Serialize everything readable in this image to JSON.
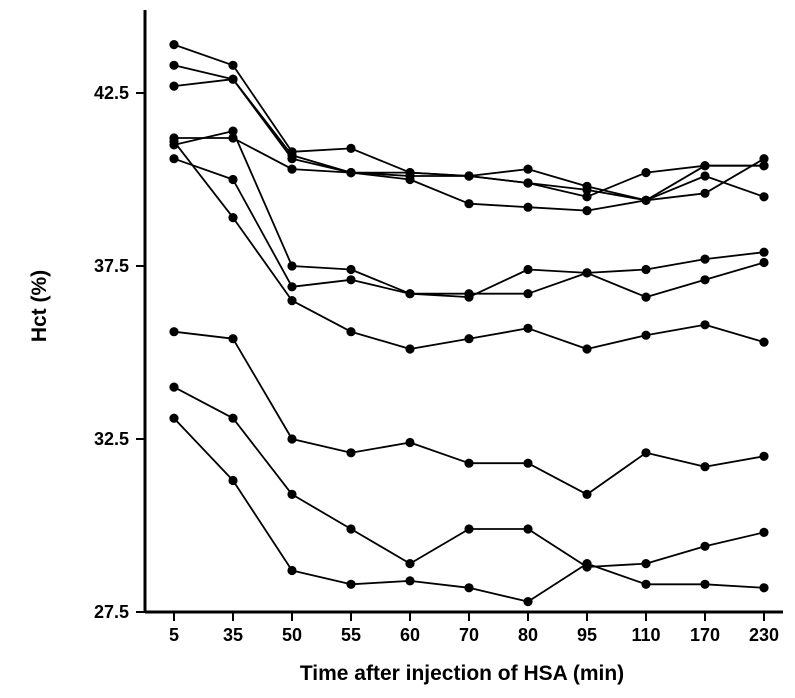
{
  "chart_data": {
    "type": "line",
    "title": "",
    "xlabel": "Time after injection of HSA (min)",
    "ylabel": "Hct  (%)",
    "categories": [
      "5",
      "35",
      "50",
      "55",
      "60",
      "70",
      "80",
      "95",
      "110",
      "170",
      "230"
    ],
    "yticks": [
      "27.5",
      "32.5",
      "37.5",
      "42.5"
    ],
    "ylim": [
      27.5,
      44.8
    ],
    "grid": false,
    "marker": "filled-circle",
    "line_color": "#000000",
    "series": [
      {
        "values": [
          43.9,
          43.3,
          40.8,
          40.9,
          40.2,
          40.1,
          40.3,
          39.8,
          39.4,
          40.4,
          40.4
        ]
      },
      {
        "values": [
          43.3,
          42.9,
          40.6,
          40.2,
          40.0,
          39.3,
          39.2,
          39.1,
          39.4,
          40.1,
          39.5
        ]
      },
      {
        "values": [
          42.7,
          42.9,
          40.7,
          40.2,
          40.1,
          40.1,
          39.9,
          39.7,
          39.4,
          39.6,
          40.6
        ]
      },
      {
        "values": [
          41.2,
          41.2,
          40.3,
          40.2,
          40.2,
          40.1,
          39.9,
          39.5,
          40.2,
          40.4,
          40.4
        ]
      },
      {
        "values": [
          41.0,
          41.4,
          37.5,
          37.4,
          36.7,
          36.6,
          37.4,
          37.3,
          37.4,
          37.7,
          37.9
        ]
      },
      {
        "values": [
          40.6,
          40.0,
          36.9,
          37.1,
          36.7,
          36.7,
          36.7,
          37.3,
          36.6,
          37.1,
          37.6
        ]
      },
      {
        "values": [
          41.1,
          38.9,
          36.5,
          35.6,
          35.1,
          35.4,
          35.7,
          35.1,
          35.5,
          35.8,
          35.3
        ]
      },
      {
        "values": [
          35.6,
          35.4,
          32.5,
          32.1,
          32.4,
          31.8,
          31.8,
          30.9,
          32.1,
          31.7,
          32.0
        ]
      },
      {
        "values": [
          34.0,
          33.1,
          30.9,
          29.9,
          28.9,
          29.9,
          29.9,
          28.8,
          28.9,
          29.4,
          29.8
        ]
      },
      {
        "values": [
          33.1,
          31.3,
          28.7,
          28.3,
          28.4,
          28.2,
          27.8,
          28.9,
          28.3,
          28.3,
          28.2
        ]
      }
    ]
  }
}
